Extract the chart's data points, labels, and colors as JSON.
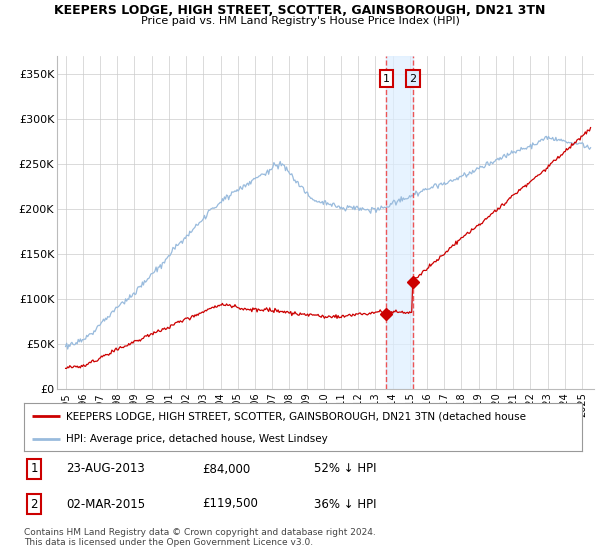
{
  "title": "KEEPERS LODGE, HIGH STREET, SCOTTER, GAINSBOROUGH, DN21 3TN",
  "subtitle": "Price paid vs. HM Land Registry's House Price Index (HPI)",
  "ylim": [
    0,
    370000
  ],
  "yticks": [
    0,
    50000,
    100000,
    150000,
    200000,
    250000,
    300000,
    350000
  ],
  "ytick_labels": [
    "£0",
    "£50K",
    "£100K",
    "£150K",
    "£200K",
    "£250K",
    "£300K",
    "£350K"
  ],
  "hpi_color": "#99bbdd",
  "price_color": "#cc0000",
  "marker_color": "#cc0000",
  "vline_color": "#ee4444",
  "shade_color": "#ddeeff",
  "sale1_year": 2013.644,
  "sale1_price": 84000,
  "sale1_label": "1",
  "sale2_year": 2015.163,
  "sale2_price": 119500,
  "sale2_label": "2",
  "legend_line1": "KEEPERS LODGE, HIGH STREET, SCOTTER, GAINSBOROUGH, DN21 3TN (detached house",
  "legend_line2": "HPI: Average price, detached house, West Lindsey",
  "table_row1": [
    "1",
    "23-AUG-2013",
    "£84,000",
    "52% ↓ HPI"
  ],
  "table_row2": [
    "2",
    "02-MAR-2015",
    "£119,500",
    "36% ↓ HPI"
  ],
  "footnote": "Contains HM Land Registry data © Crown copyright and database right 2024.\nThis data is licensed under the Open Government Licence v3.0.",
  "background_color": "#ffffff",
  "grid_color": "#cccccc",
  "title_fontsize": 9.0,
  "subtitle_fontsize": 8.0
}
